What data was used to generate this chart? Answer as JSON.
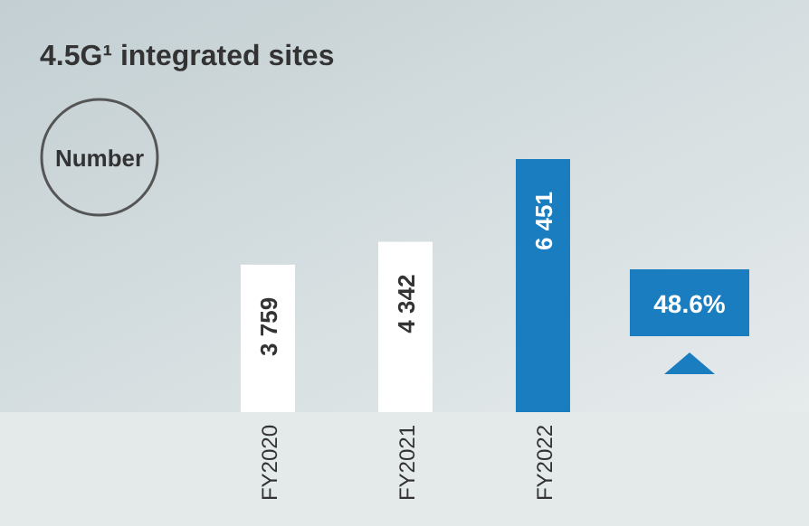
{
  "chart_data": {
    "type": "bar",
    "title": "4.5G¹ integrated sites",
    "categories": [
      "FY2020",
      "FY2021",
      "FY2022"
    ],
    "values": [
      3759,
      4342,
      6451
    ],
    "colors": [
      "#ffffff",
      "#ffffff",
      "#1a7dc0"
    ],
    "value_labels": [
      "3 759",
      "4 342",
      "6 451"
    ],
    "annotations": [
      "Number",
      "48.6%"
    ]
  }
}
